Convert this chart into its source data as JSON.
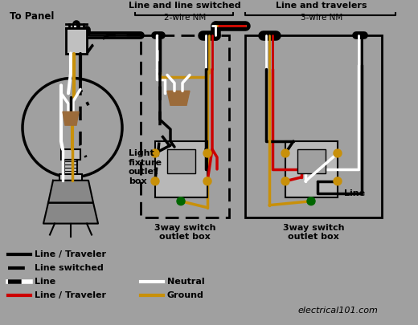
{
  "bg_color": "#a0a0a0",
  "watermark": "electrical101.com",
  "label_topanel": "To Panel",
  "label_lineswitch": "Line and line switched",
  "label_2wire": "2-wire NM",
  "label_linetrav": "Line and travelers",
  "label_3wire": "3-wire NM",
  "label_lightbox": "Light\nfixture\noutlet\nbox",
  "label_3way1": "3way switch\noutlet box",
  "label_3way2": "3way switch\noutlet box",
  "label_line": "Line",
  "BLACK": "#000000",
  "WHITE": "#ffffff",
  "RED": "#cc0000",
  "GOLD": "#c8900a",
  "BROWN": "#9B6B3A",
  "GRAY_SWITCH": "#b8b8b8",
  "GRAY_DARK": "#888888",
  "GREEN": "#006600",
  "ORANGE": "#cc8800"
}
